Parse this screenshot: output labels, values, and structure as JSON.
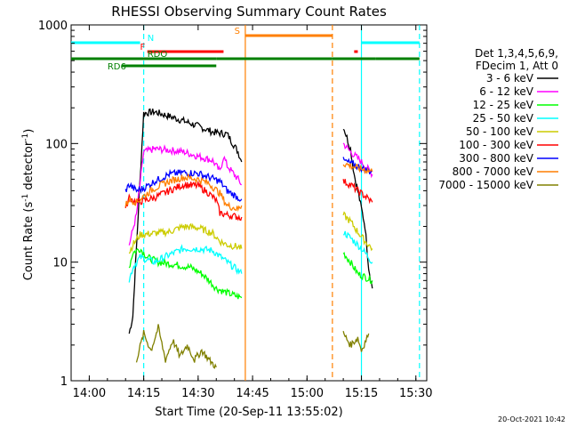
{
  "chart_data": {
    "type": "line",
    "title": "RHESSI Observing Summary Count Rates",
    "xlabel": "Start Time (20-Sep-11 13:55:02)",
    "ylabel_main": "Count Rate (s",
    "ylabel_sup1": "-1",
    "ylabel_mid": " detector",
    "ylabel_sup2": "-1",
    "ylabel_end": ")",
    "footer": "20-Oct-2021 10:42",
    "xlim": [
      "13:55",
      "15:33"
    ],
    "ylim": [
      1,
      1000
    ],
    "ylog": true,
    "x_ticks": [
      {
        "t": "14:00",
        "label": "14:00"
      },
      {
        "t": "14:15",
        "label": "14:15"
      },
      {
        "t": "14:30",
        "label": "14:30"
      },
      {
        "t": "14:45",
        "label": "14:45"
      },
      {
        "t": "15:00",
        "label": "15:00"
      },
      {
        "t": "15:15",
        "label": "15:15"
      },
      {
        "t": "15:30",
        "label": "15:30"
      }
    ],
    "y_ticks": [
      {
        "v": 1,
        "label": "1"
      },
      {
        "v": 10,
        "label": "10"
      },
      {
        "v": 100,
        "label": "100"
      },
      {
        "v": 1000,
        "label": "1000"
      }
    ],
    "legend_header": [
      "Det 1,3,4,5,6,9,",
      "FDecim 1, Att 0"
    ],
    "legend_placement": "right",
    "series": [
      {
        "name": "3 - 6 keV",
        "color": "#000000",
        "points": [
          [
            "14:11",
            "2.5"
          ],
          [
            "14:12",
            "3.5"
          ],
          [
            "14:14",
            "50"
          ],
          [
            "14:15",
            "180"
          ],
          [
            "14:18",
            "185"
          ],
          [
            "14:22",
            "170"
          ],
          [
            "14:26",
            "155"
          ],
          [
            "14:30",
            "140"
          ],
          [
            "14:34",
            "125"
          ],
          [
            "14:38",
            "120"
          ],
          [
            "14:41",
            "85"
          ],
          [
            "14:42",
            "70"
          ],
          [
            "15:10",
            "140"
          ],
          [
            "15:12",
            "90"
          ],
          [
            "15:13",
            "55"
          ],
          [
            "15:14",
            "40"
          ],
          [
            "15:16",
            "20"
          ],
          [
            "15:17",
            "9"
          ],
          [
            "15:18",
            "6"
          ]
        ]
      },
      {
        "name": "6 - 12 keV",
        "color": "#ff00ff",
        "points": [
          [
            "14:11",
            "14"
          ],
          [
            "14:13",
            "25"
          ],
          [
            "14:15",
            "85"
          ],
          [
            "14:18",
            "90"
          ],
          [
            "14:22",
            "88"
          ],
          [
            "14:26",
            "85"
          ],
          [
            "14:30",
            "78"
          ],
          [
            "14:34",
            "72"
          ],
          [
            "14:36",
            "58"
          ],
          [
            "14:37",
            "78"
          ],
          [
            "14:38",
            "65"
          ],
          [
            "14:41",
            "50"
          ],
          [
            "14:42",
            "45"
          ],
          [
            "15:10",
            "100"
          ],
          [
            "15:12",
            "85"
          ],
          [
            "15:14",
            "75"
          ],
          [
            "15:16",
            "65"
          ],
          [
            "15:18",
            "55"
          ]
        ]
      },
      {
        "name": "12 - 25 keV",
        "color": "#00ff00",
        "points": [
          [
            "14:11",
            "9"
          ],
          [
            "14:12",
            "12"
          ],
          [
            "14:14",
            "13"
          ],
          [
            "14:16",
            "11"
          ],
          [
            "14:19",
            "10"
          ],
          [
            "14:24",
            "9.5"
          ],
          [
            "14:28",
            "9"
          ],
          [
            "14:31",
            "8"
          ],
          [
            "14:33",
            "7"
          ],
          [
            "14:35",
            "6"
          ],
          [
            "14:38",
            "5.5"
          ],
          [
            "14:42",
            "5"
          ],
          [
            "15:10",
            "12"
          ],
          [
            "15:12",
            "10"
          ],
          [
            "15:14",
            "8"
          ],
          [
            "15:16",
            "7.5"
          ],
          [
            "15:18",
            "7"
          ]
        ]
      },
      {
        "name": "25 - 50 keV",
        "color": "#00ffff",
        "points": [
          [
            "14:11",
            "7"
          ],
          [
            "14:12",
            "9"
          ],
          [
            "14:14",
            "11"
          ],
          [
            "14:18",
            "10"
          ],
          [
            "14:22",
            "11.5"
          ],
          [
            "14:26",
            "13"
          ],
          [
            "14:30",
            "13"
          ],
          [
            "14:34",
            "12.5"
          ],
          [
            "14:38",
            "10"
          ],
          [
            "14:41",
            "8.5"
          ],
          [
            "14:42",
            "8"
          ],
          [
            "15:10",
            "18"
          ],
          [
            "15:12",
            "16"
          ],
          [
            "15:14",
            "14"
          ],
          [
            "15:16",
            "12"
          ],
          [
            "15:18",
            "10"
          ]
        ]
      },
      {
        "name": "50 - 100 keV",
        "color": "#cccc00",
        "points": [
          [
            "14:11",
            "12"
          ],
          [
            "14:12",
            "14"
          ],
          [
            "14:14",
            "17"
          ],
          [
            "14:18",
            "17.5"
          ],
          [
            "14:22",
            "18"
          ],
          [
            "14:26",
            "20"
          ],
          [
            "14:30",
            "19.5"
          ],
          [
            "14:34",
            "17.5"
          ],
          [
            "14:36",
            "15"
          ],
          [
            "14:38",
            "14"
          ],
          [
            "14:41",
            "13.5"
          ],
          [
            "14:42",
            "13"
          ],
          [
            "15:10",
            "25"
          ],
          [
            "15:12",
            "22"
          ],
          [
            "15:14",
            "18"
          ],
          [
            "15:16",
            "15"
          ],
          [
            "15:18",
            "13"
          ]
        ]
      },
      {
        "name": "100 - 300 keV",
        "color": "#ff0000",
        "points": [
          [
            "14:10",
            "28"
          ],
          [
            "14:11",
            "35"
          ],
          [
            "14:13",
            "32"
          ],
          [
            "14:15",
            "33"
          ],
          [
            "14:18",
            "35"
          ],
          [
            "14:22",
            "40"
          ],
          [
            "14:26",
            "45"
          ],
          [
            "14:30",
            "44"
          ],
          [
            "14:33",
            "38"
          ],
          [
            "14:35",
            "33"
          ],
          [
            "14:36",
            "26"
          ],
          [
            "14:38",
            "25"
          ],
          [
            "14:41",
            "24"
          ],
          [
            "14:42",
            "24"
          ],
          [
            "15:10",
            "48"
          ],
          [
            "15:12",
            "45"
          ],
          [
            "15:14",
            "40"
          ],
          [
            "15:16",
            "36"
          ],
          [
            "15:18",
            "32"
          ]
        ]
      },
      {
        "name": "300 - 800 keV",
        "color": "#0000ff",
        "points": [
          [
            "14:10",
            "40"
          ],
          [
            "14:11",
            "45"
          ],
          [
            "14:13",
            "40"
          ],
          [
            "14:15",
            "42"
          ],
          [
            "14:18",
            "48"
          ],
          [
            "14:22",
            "55"
          ],
          [
            "14:26",
            "57"
          ],
          [
            "14:30",
            "56"
          ],
          [
            "14:33",
            "52"
          ],
          [
            "14:36",
            "48"
          ],
          [
            "14:38",
            "40"
          ],
          [
            "14:41",
            "35"
          ],
          [
            "14:42",
            "34"
          ],
          [
            "15:10",
            "72"
          ],
          [
            "15:12",
            "68"
          ],
          [
            "15:14",
            "64"
          ],
          [
            "15:16",
            "60"
          ],
          [
            "15:18",
            "58"
          ]
        ]
      },
      {
        "name": "800 - 7000 keV",
        "color": "#ff7f00",
        "points": [
          [
            "14:10",
            "30"
          ],
          [
            "14:11",
            "34"
          ],
          [
            "14:13",
            "32"
          ],
          [
            "14:15",
            "36"
          ],
          [
            "14:18",
            "42"
          ],
          [
            "14:22",
            "48"
          ],
          [
            "14:26",
            "52"
          ],
          [
            "14:30",
            "50"
          ],
          [
            "14:33",
            "46"
          ],
          [
            "14:36",
            "38"
          ],
          [
            "14:38",
            "30"
          ],
          [
            "14:41",
            "28"
          ],
          [
            "14:42",
            "30"
          ],
          [
            "15:10",
            "68"
          ],
          [
            "15:12",
            "65"
          ],
          [
            "15:14",
            "62"
          ],
          [
            "15:16",
            "60"
          ],
          [
            "15:18",
            "58"
          ]
        ]
      },
      {
        "name": "7000 - 15000 keV",
        "color": "#808000",
        "points": [
          [
            "14:13",
            "1.5"
          ],
          [
            "14:15",
            "2.5"
          ],
          [
            "14:17",
            "1.8"
          ],
          [
            "14:19",
            "2.8"
          ],
          [
            "14:21",
            "1.5"
          ],
          [
            "14:23",
            "2.2"
          ],
          [
            "14:25",
            "1.6"
          ],
          [
            "14:27",
            "2.0"
          ],
          [
            "14:29",
            "1.5"
          ],
          [
            "14:31",
            "1.8"
          ],
          [
            "14:33",
            "1.5"
          ],
          [
            "14:35",
            "1.3"
          ],
          [
            "15:10",
            "2.5"
          ],
          [
            "15:12",
            "2.0"
          ],
          [
            "15:14",
            "2.3"
          ],
          [
            "15:15",
            "1.8"
          ],
          [
            "15:17",
            "2.5"
          ]
        ]
      }
    ],
    "flags": [
      {
        "label": "N",
        "color": "#00ffff",
        "segments": [
          [
            "13:55",
            "14:14"
          ],
          [
            "15:15",
            "15:31"
          ]
        ],
        "level": 48,
        "label_at": "14:16"
      },
      {
        "label": "S",
        "color": "#ff7f00",
        "segments": [
          [
            "14:43",
            "15:07"
          ]
        ],
        "level": 40,
        "label_at": "14:40"
      },
      {
        "label": "F",
        "color": "#ff0000",
        "segments": [
          [
            "14:16",
            "14:37"
          ],
          [
            "15:13",
            "15:14"
          ]
        ],
        "level": 58,
        "label_at": "14:14"
      },
      {
        "label": "RDO",
        "color": "#008000",
        "segments": [
          [
            "13:55",
            "14:35"
          ],
          [
            "14:35",
            "15:07"
          ],
          [
            "15:07",
            "15:19"
          ],
          [
            "15:19",
            "15:31"
          ]
        ],
        "level": 66,
        "label_at": "14:16"
      },
      {
        "label": "RD6",
        "color": "#008000",
        "segments": [
          [
            "14:09",
            "14:35"
          ]
        ],
        "level": 74,
        "label_at": "14:05"
      }
    ],
    "vertical_markers": [
      {
        "t": "14:15",
        "color": "#00ffff",
        "style": "dashed"
      },
      {
        "t": "14:43",
        "color": "#ff7f00",
        "style": "solid"
      },
      {
        "t": "15:07",
        "color": "#ff7f00",
        "style": "dashed"
      },
      {
        "t": "15:15",
        "color": "#00ffff",
        "style": "solid"
      },
      {
        "t": "15:31",
        "color": "#00ffff",
        "style": "dashed"
      }
    ]
  }
}
